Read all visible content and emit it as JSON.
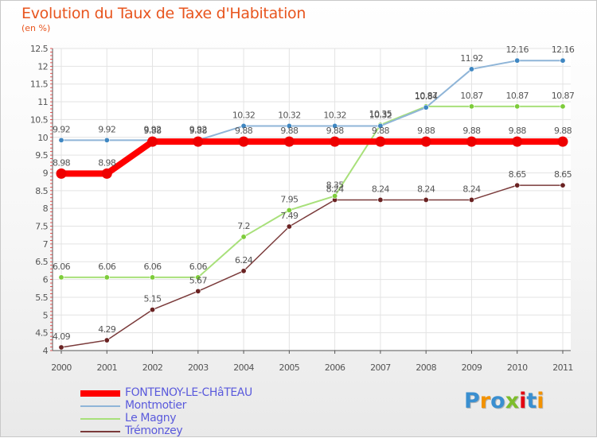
{
  "chart_data": {
    "type": "line",
    "title": "Evolution du Taux de Taxe d'Habitation",
    "subtitle": "(en %)",
    "x": [
      "2000",
      "2001",
      "2002",
      "2003",
      "2004",
      "2005",
      "2006",
      "2007",
      "2008",
      "2009",
      "2010",
      "2011"
    ],
    "ylim": [
      4,
      12.5
    ],
    "yticks": [
      "4",
      "4.5",
      "5",
      "5.5",
      "6",
      "6.5",
      "7",
      "7.5",
      "8",
      "8.5",
      "9",
      "9.5",
      "10",
      "10.5",
      "11",
      "11.5",
      "12",
      "12.5"
    ],
    "grid": true,
    "legend_position": "bottom-left",
    "series": [
      {
        "name": "FONTENOY-LE-CHâTEAU",
        "color": "#ff0000",
        "marker": "#ee0000",
        "width": 8,
        "values": [
          8.98,
          8.98,
          9.88,
          9.88,
          9.88,
          9.88,
          9.88,
          9.88,
          9.88,
          9.88,
          9.88,
          9.88
        ],
        "labels": [
          "8.98",
          "8.98",
          "9.88",
          "9.88",
          "9.88",
          "9.88",
          "9.88",
          "9.88",
          "9.88",
          "9.88",
          "9.88",
          "9.88"
        ]
      },
      {
        "name": "Montmotier",
        "color": "#8fb5d8",
        "marker": "#3f87c2",
        "width": 2,
        "values": [
          9.92,
          9.92,
          9.92,
          9.92,
          10.32,
          10.32,
          10.32,
          10.32,
          10.84,
          11.92,
          12.16,
          12.16
        ],
        "labels": [
          "9.92",
          "9.92",
          "9.92",
          "9.92",
          "10.32",
          "10.32",
          "10.32",
          "10.32",
          "10.84",
          "11.92",
          "12.16",
          "12.16"
        ]
      },
      {
        "name": "Le Magny",
        "color": "#a8e07a",
        "marker": "#7dcc3a",
        "width": 2,
        "values": [
          6.06,
          6.06,
          6.06,
          6.06,
          7.2,
          7.95,
          8.35,
          10.35,
          10.87,
          10.87,
          10.87,
          10.87
        ],
        "labels": [
          "6.06",
          "6.06",
          "6.06",
          "6.06",
          "7.2",
          "7.95",
          "8.35",
          "10.35",
          "10.87",
          "10.87",
          "10.87",
          "10.87"
        ]
      },
      {
        "name": "Trémonzey",
        "color": "#7a3a3a",
        "marker": "#6a2222",
        "width": 1.5,
        "values": [
          4.09,
          4.29,
          5.15,
          5.67,
          6.24,
          7.49,
          8.24,
          8.24,
          8.24,
          8.24,
          8.65,
          8.65
        ],
        "labels": [
          "4.09",
          "4.29",
          "5.15",
          "5.67",
          "6.24",
          "7.49",
          "8.24",
          "8.24",
          "8.24",
          "8.24",
          "8.65",
          "8.65"
        ]
      }
    ]
  },
  "logo": {
    "text": "Proxiti",
    "colors": [
      "#3a8fd0",
      "#f39200",
      "#3a8fd0",
      "#7dbd2c",
      "#e30613",
      "#3a8fd0",
      "#f39200"
    ]
  }
}
